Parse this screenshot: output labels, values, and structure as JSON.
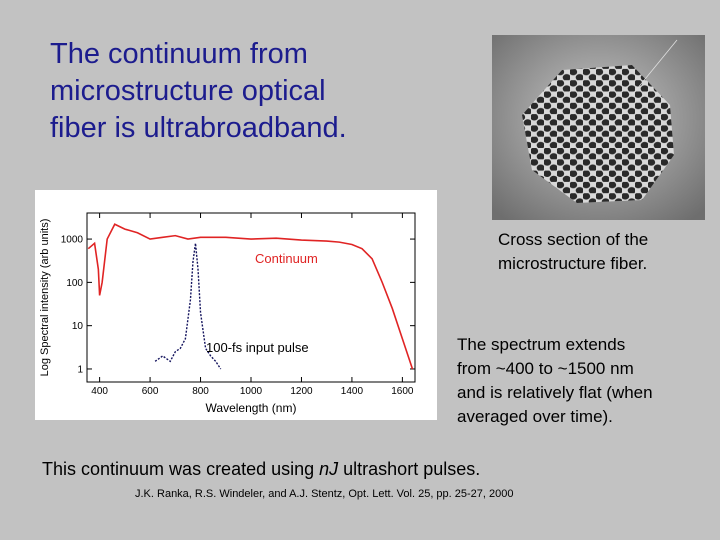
{
  "title_lines": [
    "The continuum from",
    "microstructure optical",
    "fiber is ultrabroadband."
  ],
  "caption_lines": [
    "Cross section of the",
    "microstructure fiber."
  ],
  "description_lines": [
    "The spectrum extends",
    "from ~400 to ~1500 nm",
    "and is relatively flat (when",
    "averaged over time)."
  ],
  "bottom_text": {
    "before": "This continuum was created using",
    "italic": "nJ",
    "after": "ultrashort pulses."
  },
  "citation": "J.K. Ranka, R.S. Windeler, and A.J. Stentz, Opt. Lett. Vol. 25, pp. 25-27, 2000",
  "chart_data": {
    "type": "line",
    "xlabel": "Wavelength (nm)",
    "ylabel": "Log Spectral intensity (arb units)",
    "xlim": [
      350,
      1650
    ],
    "ylim": [
      0.5,
      4000
    ],
    "yscale": "log",
    "xticks": [
      400,
      600,
      800,
      1000,
      1200,
      1400,
      1600
    ],
    "yticks": [
      1,
      10,
      100,
      1000
    ],
    "series": [
      {
        "name": "Continuum",
        "color": "#e02424",
        "x": [
          355,
          380,
          395,
          400,
          410,
          430,
          460,
          500,
          550,
          600,
          650,
          700,
          750,
          800,
          900,
          1000,
          1100,
          1200,
          1300,
          1350,
          1400,
          1440,
          1480,
          1520,
          1560,
          1600,
          1640
        ],
        "values": [
          600,
          800,
          200,
          50,
          100,
          1000,
          2200,
          1700,
          1400,
          1000,
          1100,
          1200,
          1000,
          1100,
          1100,
          1000,
          1050,
          950,
          900,
          850,
          750,
          600,
          350,
          100,
          25,
          5,
          1
        ]
      },
      {
        "name": "100-fs input pulse",
        "color": "#14145e",
        "x": [
          620,
          650,
          680,
          700,
          720,
          740,
          760,
          770,
          780,
          790,
          800,
          820,
          840,
          860,
          880
        ],
        "values": [
          1.5,
          2,
          1.5,
          2.5,
          3,
          5,
          40,
          300,
          800,
          200,
          20,
          3,
          2,
          1.5,
          1
        ]
      }
    ]
  }
}
